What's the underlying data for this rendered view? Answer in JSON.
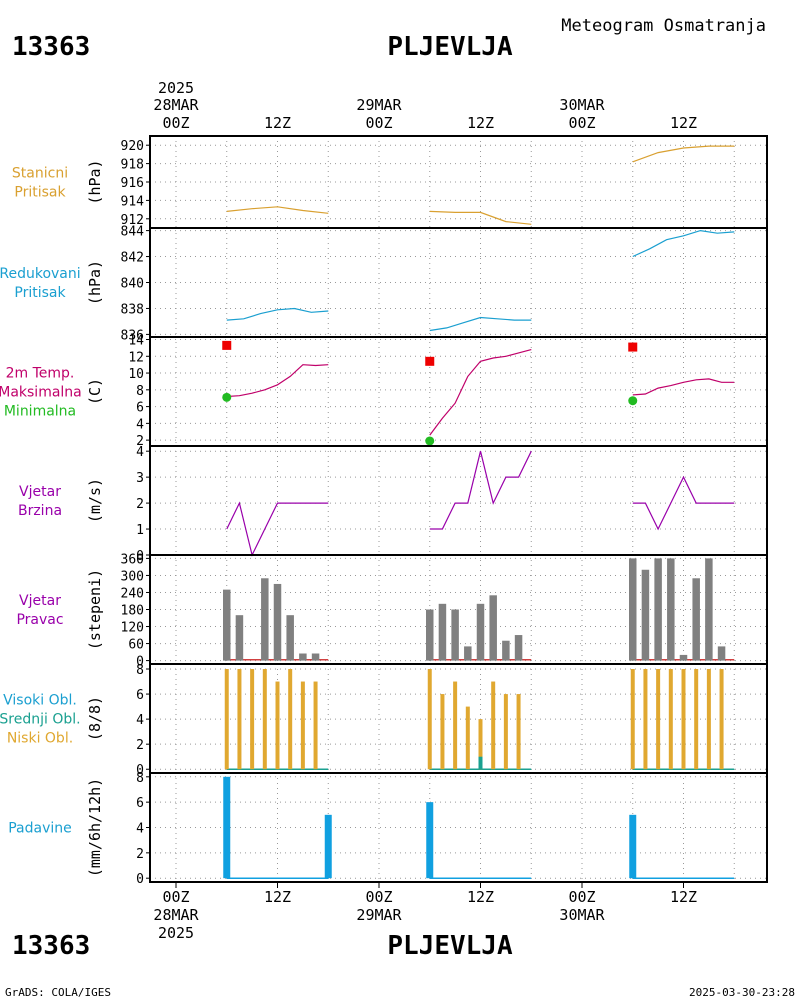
{
  "header": {
    "station_id": "13363",
    "station_name": "PLJEVLJA",
    "subtitle": "Meteogram Osmatranja"
  },
  "footer": {
    "station_id": "13363",
    "station_name": "PLJEVLJA",
    "credit": "GrADS: COLA/IGES",
    "timestamp": "2025-03-30-23:28"
  },
  "time_axis": {
    "top_year": "2025",
    "bottom_year": "2025",
    "days": [
      "28MAR",
      "29MAR",
      "30MAR"
    ],
    "labels_00z": "00Z",
    "labels_12z": "12Z"
  },
  "colors": {
    "pressure": "#d9a030",
    "reduced": "#1a9fd0",
    "max_temp": "#c0006a",
    "min_temp": "#22bb22",
    "max_marker": "#ee0000",
    "wind": "#9900aa",
    "direction_bars": "#808080",
    "clouds": "#e0a830",
    "cloud_mid": "#1aa090",
    "precip": "#10a0e0"
  },
  "chart_data": [
    {
      "type": "line",
      "panel": "station_pressure",
      "label_lines": [
        "Stanicni",
        "Pritisak"
      ],
      "ylabel": "(hPa)",
      "ylim": [
        911,
        921
      ],
      "yticks": [
        912,
        914,
        916,
        918,
        920
      ],
      "series": [
        {
          "x": [
            6,
            9,
            12,
            15,
            18
          ],
          "y": [
            912.8,
            913.1,
            913.3,
            912.9,
            912.6
          ]
        },
        {
          "x": [
            30,
            33,
            36,
            39,
            42
          ],
          "y": [
            912.8,
            912.7,
            912.7,
            911.7,
            911.4
          ]
        },
        {
          "x": [
            54,
            57,
            60,
            63,
            66
          ],
          "y": [
            918.2,
            919.2,
            919.7,
            919.9,
            919.9
          ]
        }
      ]
    },
    {
      "type": "line",
      "panel": "reduced_pressure",
      "label_lines": [
        "Redukovani",
        "Pritisak"
      ],
      "ylabel": "(hPa)",
      "ylim": [
        835.8,
        844.2
      ],
      "yticks": [
        836,
        838,
        840,
        842,
        844
      ],
      "series": [
        {
          "x": [
            6,
            8,
            10,
            12,
            14,
            16,
            18
          ],
          "y": [
            837.1,
            837.2,
            837.6,
            837.9,
            838.0,
            837.7,
            837.8
          ]
        },
        {
          "x": [
            30,
            32,
            34,
            36,
            38,
            40,
            42
          ],
          "y": [
            836.3,
            836.5,
            836.9,
            837.3,
            837.2,
            837.1,
            837.1
          ]
        },
        {
          "x": [
            54,
            56,
            58,
            60,
            62,
            64,
            66
          ],
          "y": [
            842.0,
            842.6,
            843.3,
            843.6,
            844.0,
            843.8,
            843.9
          ]
        }
      ]
    },
    {
      "type": "line",
      "panel": "temperature",
      "label_lines": [
        "2m Temp.",
        "Maksimalna",
        "Minimalna"
      ],
      "ylabel": "(C)",
      "ylim": [
        1.3,
        14.3
      ],
      "yticks": [
        2,
        4,
        6,
        8,
        10,
        12,
        14
      ],
      "series": [
        {
          "x": [
            6,
            7.5,
            9,
            10.5,
            12,
            13.5,
            15,
            16.5,
            18
          ],
          "y": [
            7.2,
            7.3,
            7.6,
            8.0,
            8.6,
            9.6,
            11.0,
            10.9,
            11.0
          ]
        },
        {
          "x": [
            30,
            31.5,
            33,
            34.5,
            36,
            37.5,
            39,
            40.5,
            42
          ],
          "y": [
            2.6,
            4.6,
            6.4,
            9.6,
            11.4,
            11.8,
            12.0,
            12.4,
            12.8
          ]
        },
        {
          "x": [
            54,
            55.5,
            57,
            58.5,
            60,
            61.5,
            63,
            64.5,
            66
          ],
          "y": [
            7.4,
            7.5,
            8.2,
            8.5,
            8.9,
            9.2,
            9.3,
            8.9,
            8.9
          ]
        }
      ],
      "max_points": [
        {
          "x": 6,
          "y": 13.3
        },
        {
          "x": 30,
          "y": 11.4
        },
        {
          "x": 54,
          "y": 13.1
        }
      ],
      "min_points": [
        {
          "x": 6,
          "y": 7.1
        },
        {
          "x": 30,
          "y": 1.9
        },
        {
          "x": 54,
          "y": 6.7
        }
      ]
    },
    {
      "type": "line",
      "panel": "wind_speed",
      "label_lines": [
        "Vjetar",
        "Brzina"
      ],
      "ylabel": "(m/s)",
      "ylim": [
        0,
        4.2
      ],
      "yticks": [
        0,
        1,
        2,
        3,
        4
      ],
      "series": [
        {
          "x": [
            6,
            7.5,
            9,
            10.5,
            12,
            13.5,
            15,
            16.5,
            18
          ],
          "y": [
            1,
            2,
            0,
            1,
            2,
            2,
            2,
            2,
            2
          ]
        },
        {
          "x": [
            30,
            31.5,
            33,
            34.5,
            36,
            37.5,
            39,
            40.5,
            42
          ],
          "y": [
            1,
            1,
            2,
            2,
            4,
            2,
            3,
            3,
            4
          ]
        },
        {
          "x": [
            54,
            55.5,
            57,
            58.5,
            60,
            61.5,
            63,
            64.5,
            66
          ],
          "y": [
            2,
            2,
            1,
            2,
            3,
            2,
            2,
            2,
            2
          ]
        }
      ]
    },
    {
      "type": "bar",
      "panel": "wind_direction",
      "label_lines": [
        "Vjetar",
        "Pravac"
      ],
      "ylabel": "(stepeni)",
      "ylim": [
        -12,
        372
      ],
      "yticks": [
        0,
        60,
        120,
        180,
        240,
        300,
        360
      ],
      "bars": [
        {
          "x": 6,
          "v": 250
        },
        {
          "x": 7.5,
          "v": 160
        },
        {
          "x": 9,
          "v": 0
        },
        {
          "x": 10.5,
          "v": 290
        },
        {
          "x": 12,
          "v": 270
        },
        {
          "x": 13.5,
          "v": 160
        },
        {
          "x": 15,
          "v": 25
        },
        {
          "x": 16.5,
          "v": 25
        },
        {
          "x": 30,
          "v": 180
        },
        {
          "x": 31.5,
          "v": 200
        },
        {
          "x": 33,
          "v": 180
        },
        {
          "x": 34.5,
          "v": 50
        },
        {
          "x": 36,
          "v": 200
        },
        {
          "x": 37.5,
          "v": 230
        },
        {
          "x": 39,
          "v": 70
        },
        {
          "x": 40.5,
          "v": 90
        },
        {
          "x": 54,
          "v": 360
        },
        {
          "x": 55.5,
          "v": 320
        },
        {
          "x": 57,
          "v": 360
        },
        {
          "x": 58.5,
          "v": 360
        },
        {
          "x": 60,
          "v": 20
        },
        {
          "x": 61.5,
          "v": 290
        },
        {
          "x": 63,
          "v": 360
        },
        {
          "x": 64.5,
          "v": 50
        }
      ],
      "baseline_segments": [
        [
          6,
          18
        ],
        [
          30,
          42
        ],
        [
          54,
          66
        ]
      ]
    },
    {
      "type": "bar",
      "panel": "clouds",
      "label_lines": [
        "Visoki Obl.",
        "Srednji Obl.",
        "Niski Obl."
      ],
      "ylabel": "(8/8)",
      "ylim": [
        -0.3,
        8.4
      ],
      "yticks": [
        0,
        2,
        4,
        6,
        8
      ],
      "bars": [
        {
          "x": 6,
          "v": 8
        },
        {
          "x": 7.5,
          "v": 8
        },
        {
          "x": 9,
          "v": 8
        },
        {
          "x": 10.5,
          "v": 8
        },
        {
          "x": 12,
          "v": 7
        },
        {
          "x": 13.5,
          "v": 8
        },
        {
          "x": 15,
          "v": 7
        },
        {
          "x": 16.5,
          "v": 7
        },
        {
          "x": 30,
          "v": 8
        },
        {
          "x": 31.5,
          "v": 6
        },
        {
          "x": 33,
          "v": 7
        },
        {
          "x": 34.5,
          "v": 5
        },
        {
          "x": 36,
          "v": 4
        },
        {
          "x": 37.5,
          "v": 7
        },
        {
          "x": 39,
          "v": 6
        },
        {
          "x": 40.5,
          "v": 6
        },
        {
          "x": 54,
          "v": 8
        },
        {
          "x": 55.5,
          "v": 8
        },
        {
          "x": 57,
          "v": 8
        },
        {
          "x": 58.5,
          "v": 8
        },
        {
          "x": 60,
          "v": 8
        },
        {
          "x": 61.5,
          "v": 8
        },
        {
          "x": 63,
          "v": 8
        },
        {
          "x": 64.5,
          "v": 8
        }
      ],
      "mid_bars": [
        {
          "x": 36,
          "v": 1
        }
      ],
      "baseline_segments": [
        [
          6,
          18
        ],
        [
          30,
          42
        ],
        [
          54,
          66
        ]
      ]
    },
    {
      "type": "bar",
      "panel": "precipitation",
      "label_lines": [
        "Padavine"
      ],
      "ylabel": "(mm/6h/12h)",
      "ylim": [
        -0.3,
        8.3
      ],
      "yticks": [
        0,
        2,
        4,
        6,
        8
      ],
      "bars": [
        {
          "x": 6,
          "v": 8
        },
        {
          "x": 18,
          "v": 5
        },
        {
          "x": 30,
          "v": 6
        },
        {
          "x": 54,
          "v": 5
        }
      ],
      "baseline_segments": [
        [
          6,
          18
        ],
        [
          30,
          42
        ],
        [
          54,
          66
        ]
      ]
    }
  ]
}
